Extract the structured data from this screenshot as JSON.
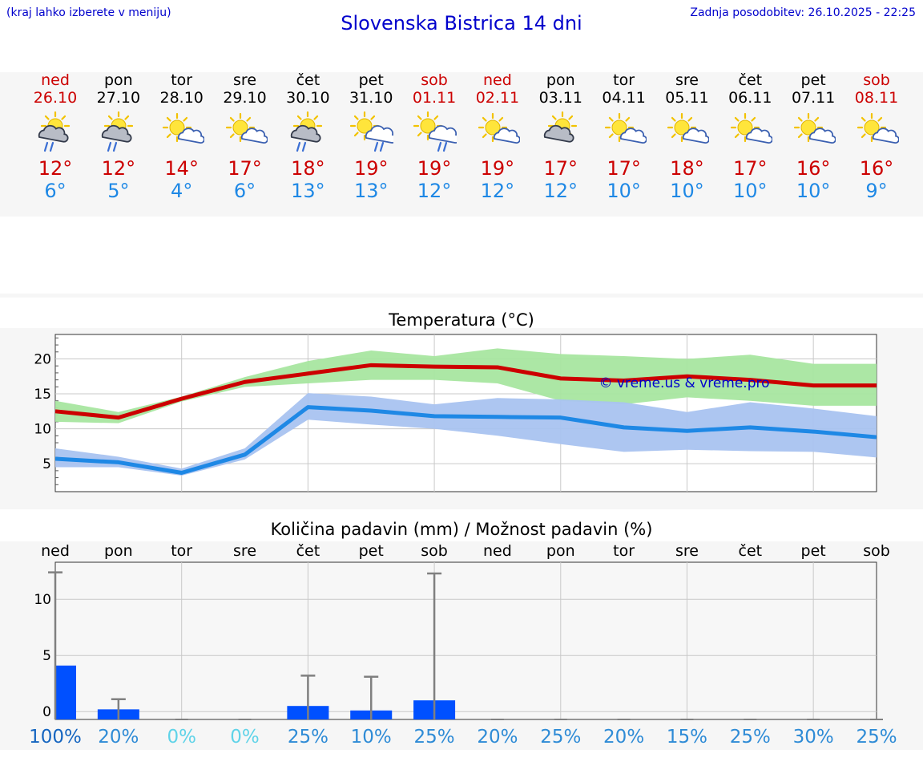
{
  "header": {
    "left_note": "(kraj lahko izberete v meniju)",
    "title": "Slovenska Bistrica 14 dni",
    "updated": "Zadnja posodobitev: 26.10.2025 - 22:25"
  },
  "colors": {
    "max_temp": "#cc0000",
    "min_temp": "#1e88e5",
    "max_band": "#a8e6a0",
    "min_band": "#a9c3f0",
    "precip_bar": "#0050ff"
  },
  "days": [
    {
      "name": "ned",
      "date": "26.10",
      "weekend": true,
      "icon": "rain-showers-sun-icon",
      "max": "12°",
      "min": "6°"
    },
    {
      "name": "pon",
      "date": "27.10",
      "weekend": false,
      "icon": "rain-showers-sun-icon",
      "max": "12°",
      "min": "5°"
    },
    {
      "name": "tor",
      "date": "28.10",
      "weekend": false,
      "icon": "sun-cloud-icon",
      "max": "14°",
      "min": "4°"
    },
    {
      "name": "sre",
      "date": "29.10",
      "weekend": false,
      "icon": "sun-cloud-icon",
      "max": "17°",
      "min": "6°"
    },
    {
      "name": "čet",
      "date": "30.10",
      "weekend": false,
      "icon": "rain-showers-sun-icon",
      "max": "18°",
      "min": "13°"
    },
    {
      "name": "pet",
      "date": "31.10",
      "weekend": false,
      "icon": "sun-rain-cloud-icon",
      "max": "19°",
      "min": "13°"
    },
    {
      "name": "sob",
      "date": "01.11",
      "weekend": true,
      "icon": "sun-rain-cloud-icon",
      "max": "19°",
      "min": "12°"
    },
    {
      "name": "ned",
      "date": "02.11",
      "weekend": true,
      "icon": "sun-cloud-icon",
      "max": "19°",
      "min": "12°"
    },
    {
      "name": "pon",
      "date": "03.11",
      "weekend": false,
      "icon": "cloud-sun-icon",
      "max": "17°",
      "min": "12°"
    },
    {
      "name": "tor",
      "date": "04.11",
      "weekend": false,
      "icon": "sun-cloud-icon",
      "max": "17°",
      "min": "10°"
    },
    {
      "name": "sre",
      "date": "05.11",
      "weekend": false,
      "icon": "sun-cloud-icon",
      "max": "18°",
      "min": "10°"
    },
    {
      "name": "čet",
      "date": "06.11",
      "weekend": false,
      "icon": "sun-cloud-icon",
      "max": "17°",
      "min": "10°"
    },
    {
      "name": "pet",
      "date": "07.11",
      "weekend": false,
      "icon": "sun-cloud-icon",
      "max": "16°",
      "min": "10°"
    },
    {
      "name": "sob",
      "date": "08.11",
      "weekend": true,
      "icon": "sun-cloud-icon",
      "max": "16°",
      "min": "9°"
    }
  ],
  "chart_data": [
    {
      "type": "line",
      "title": "Temperatura (°C)",
      "ylim": [
        1,
        23.5
      ],
      "yticks": [
        5,
        10,
        15,
        20
      ],
      "grid": true,
      "watermark": "© vreme.us & vreme.pro",
      "series": [
        {
          "values": [
            12.5,
            11.6,
            14.3,
            16.7,
            17.9,
            19.1,
            18.9,
            18.8,
            17.2,
            16.9,
            17.5,
            17.0,
            16.2,
            16.2
          ],
          "band_low": [
            11.0,
            10.8,
            13.9,
            16.0,
            16.5,
            17.0,
            17.0,
            16.5,
            14.0,
            13.5,
            14.5,
            14.0,
            13.3,
            13.3
          ],
          "band_high": [
            14.0,
            12.4,
            14.6,
            17.4,
            19.7,
            21.2,
            20.4,
            21.5,
            20.7,
            20.4,
            20.0,
            20.6,
            19.3,
            19.3
          ]
        },
        {
          "values": [
            5.7,
            5.2,
            3.7,
            6.3,
            13.1,
            12.6,
            11.8,
            11.7,
            11.6,
            10.2,
            9.7,
            10.2,
            9.6,
            8.8
          ],
          "band_low": [
            4.5,
            4.5,
            3.3,
            5.6,
            11.3,
            10.6,
            10.0,
            9.0,
            7.8,
            6.7,
            7.0,
            6.8,
            6.7,
            5.9
          ],
          "band_high": [
            7.2,
            6.0,
            4.3,
            7.2,
            15.1,
            14.6,
            13.5,
            14.4,
            14.2,
            13.8,
            12.4,
            13.8,
            12.9,
            11.8
          ]
        }
      ]
    },
    {
      "type": "bar",
      "title": "Količina padavin (mm) / Možnost padavin (%)",
      "categories": [
        "ned",
        "pon",
        "tor",
        "sre",
        "čet",
        "pet",
        "sob",
        "ned",
        "pon",
        "tor",
        "sre",
        "čet",
        "pet",
        "sob"
      ],
      "ylim": [
        -0.7,
        13.3
      ],
      "yticks": [
        0,
        5,
        10
      ],
      "grid": true,
      "series": [
        {
          "values": [
            4.1,
            0.2,
            0,
            0,
            0.5,
            0.1,
            1.0,
            0,
            0,
            0,
            0,
            0,
            0,
            0
          ],
          "error_high": [
            12.4,
            1.1,
            0,
            0,
            3.2,
            3.1,
            12.3,
            0,
            0,
            0,
            0,
            0,
            0,
            0
          ]
        }
      ],
      "probability": [
        "100%",
        "20%",
        "0%",
        "0%",
        "25%",
        "10%",
        "25%",
        "20%",
        "25%",
        "20%",
        "15%",
        "25%",
        "30%",
        "25%"
      ],
      "probability_colors": [
        "#1565c0",
        "#2e8bd6",
        "#5fd3e8",
        "#5fd3e8",
        "#2e8bd6",
        "#2e8bd6",
        "#2e8bd6",
        "#2e8bd6",
        "#2e8bd6",
        "#2e8bd6",
        "#2e8bd6",
        "#2e8bd6",
        "#2e8bd6",
        "#2e8bd6"
      ]
    }
  ]
}
